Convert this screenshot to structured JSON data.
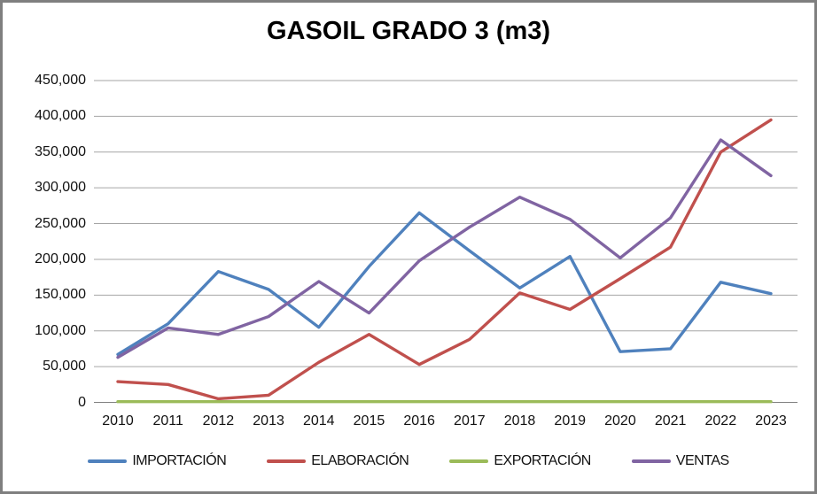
{
  "chart_data": {
    "type": "line",
    "title": "GASOIL GRADO 3 (m3)",
    "categories": [
      "2010",
      "2011",
      "2012",
      "2013",
      "2014",
      "2015",
      "2016",
      "2017",
      "2018",
      "2019",
      "2020",
      "2021",
      "2022",
      "2023"
    ],
    "series": [
      {
        "name": "IMPORTACIÓN",
        "color": "#4F81BD",
        "values": [
          67000,
          110000,
          183000,
          158000,
          105000,
          190000,
          265000,
          212000,
          160000,
          204000,
          71000,
          75000,
          168000,
          152000
        ]
      },
      {
        "name": "ELABORACIÓN",
        "color": "#C0504D",
        "values": [
          29000,
          25000,
          5000,
          10000,
          56000,
          95000,
          53000,
          88000,
          153000,
          130000,
          173000,
          217000,
          350000,
          395000
        ]
      },
      {
        "name": "EXPORTACIÓN",
        "color": "#9BBB59",
        "values": [
          1000,
          1000,
          1000,
          1000,
          1000,
          1000,
          1000,
          1000,
          1000,
          1000,
          1000,
          1000,
          1000,
          1000
        ]
      },
      {
        "name": "VENTAS",
        "color": "#8064A2",
        "values": [
          63000,
          104000,
          95000,
          120000,
          169000,
          125000,
          198000,
          245000,
          287000,
          256000,
          202000,
          258000,
          367000,
          317000
        ]
      }
    ],
    "xlabel": "",
    "ylabel": "",
    "ylim": [
      0,
      450000
    ],
    "y_tick_step": 50000,
    "y_tick_labels": [
      "0",
      "50,000",
      "100,000",
      "150,000",
      "200,000",
      "250,000",
      "300,000",
      "350,000",
      "400,000",
      "450,000"
    ],
    "grid": true,
    "gridline_color": "#A6A6A6",
    "axis_line_color": "#808080",
    "legend_position": "bottom"
  }
}
